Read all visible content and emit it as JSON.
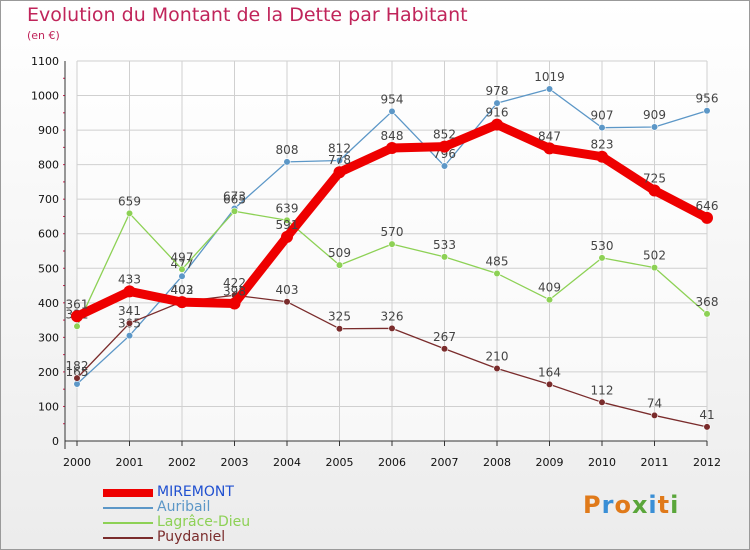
{
  "title": "Evolution du Montant de la Dette par Habitant",
  "subtitle": "(en €)",
  "logo": {
    "text": "Proxiti",
    "colors": [
      "#e07a1a",
      "#3a8fd6",
      "#e07a1a",
      "#5aa63a",
      "#3a8fd6",
      "#e07a1a",
      "#5aa63a"
    ]
  },
  "chart_data": {
    "type": "line",
    "title": "Evolution du Montant de la Dette par Habitant",
    "subtitle": "(en €)",
    "x": [
      "2000",
      "2001",
      "2002",
      "2003",
      "2004",
      "2005",
      "2006",
      "2007",
      "2008",
      "2009",
      "2010",
      "2011",
      "2012"
    ],
    "ylim": [
      0,
      1100
    ],
    "yticks": [
      0,
      100,
      200,
      300,
      400,
      500,
      600,
      700,
      800,
      900,
      1000,
      1100
    ],
    "grid": true,
    "legend_position": "bottom-left",
    "series": [
      {
        "name": "Auribail",
        "color": "#5c97c7",
        "values": [
          165,
          305,
          477,
          673,
          808,
          812,
          954,
          796,
          978,
          1019,
          907,
          909,
          956
        ]
      },
      {
        "name": "Lagrâce-Dieu",
        "color": "#8dd155",
        "values": [
          332,
          659,
          497,
          665,
          639,
          509,
          570,
          533,
          485,
          409,
          530,
          502,
          368
        ]
      },
      {
        "name": "Puydaniel",
        "color": "#7a2c2c",
        "values": [
          182,
          341,
          403,
          422,
          403,
          325,
          326,
          267,
          210,
          164,
          112,
          74,
          41
        ]
      },
      {
        "name": "MIREMONT",
        "color": "#ee0000",
        "values": [
          361,
          433,
          402,
          398,
          591,
          778,
          848,
          852,
          916,
          847,
          823,
          725,
          646
        ]
      }
    ],
    "legend_order": [
      "MIREMONT",
      "Auribail",
      "Lagrâce-Dieu",
      "Puydaniel"
    ]
  }
}
